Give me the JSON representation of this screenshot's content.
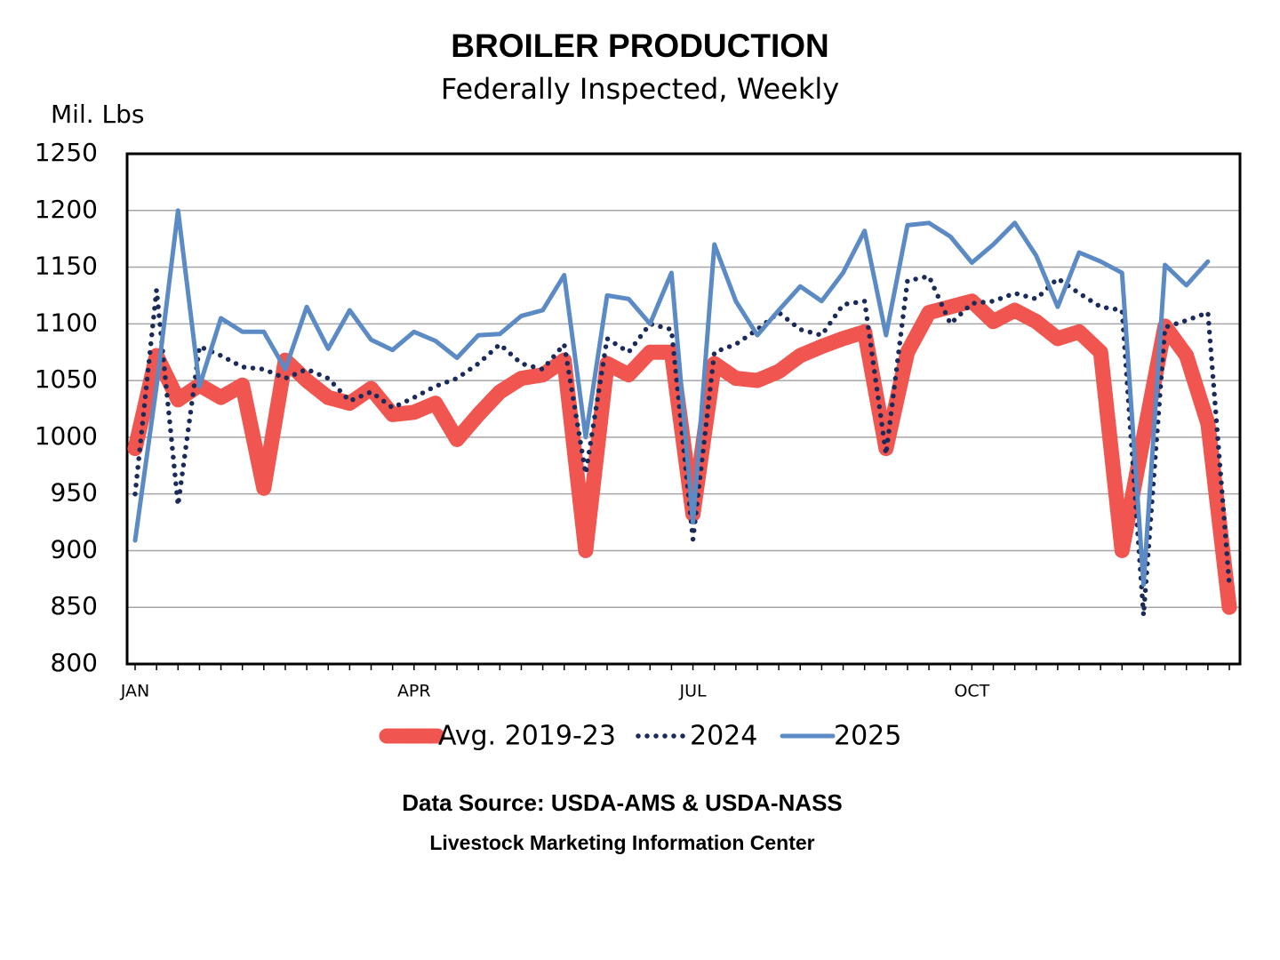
{
  "chart_data": {
    "type": "line",
    "title": "BROILER PRODUCTION",
    "subtitle": "Federally Inspected, Weekly",
    "y_label": "Mil. Lbs",
    "source": "Data Source:  USDA-AMS & USDA-NASS",
    "credit": "Livestock Marketing Information Center",
    "categories": [
      "JAN",
      null,
      null,
      null,
      null,
      null,
      null,
      null,
      null,
      null,
      null,
      null,
      null,
      "APR",
      null,
      null,
      null,
      null,
      null,
      null,
      null,
      null,
      null,
      null,
      null,
      null,
      "JUL",
      null,
      null,
      null,
      null,
      null,
      null,
      null,
      null,
      null,
      null,
      null,
      null,
      "OCT",
      null,
      null,
      null,
      null,
      null,
      null,
      null,
      null,
      null,
      null,
      null,
      null
    ],
    "ylim": [
      800,
      1250
    ],
    "yticks": [
      800,
      850,
      900,
      950,
      1000,
      1050,
      1100,
      1150,
      1200,
      1250
    ],
    "grid": true,
    "legend": "bottom",
    "series": [
      {
        "name": "Avg. 2019-23",
        "color": "#f0554f",
        "style": "thick",
        "values": [
          990,
          1072,
          1033,
          1046,
          1035,
          1046,
          955,
          1068,
          1050,
          1035,
          1030,
          1043,
          1020,
          1022,
          1030,
          998,
          1020,
          1040,
          1052,
          1055,
          1068,
          900,
          1065,
          1055,
          1075,
          1075,
          932,
          1065,
          1052,
          1050,
          1058,
          1072,
          1080,
          1087,
          1093,
          990,
          1075,
          1110,
          1115,
          1120,
          1102,
          1112,
          1102,
          1087,
          1093,
          1075,
          900,
          1000,
          1098,
          1072,
          1012,
          850
        ]
      },
      {
        "name": "2024",
        "color": "#1a2b5a",
        "style": "dotted",
        "values": [
          950,
          1130,
          940,
          1080,
          1072,
          1062,
          1060,
          1052,
          1060,
          1052,
          1032,
          1040,
          1026,
          1035,
          1045,
          1052,
          1065,
          1082,
          1065,
          1060,
          1082,
          968,
          1087,
          1075,
          1100,
          1095,
          910,
          1075,
          1082,
          1095,
          1110,
          1095,
          1090,
          1117,
          1120,
          985,
          1138,
          1142,
          1100,
          1118,
          1120,
          1127,
          1122,
          1140,
          1127,
          1115,
          1112,
          843,
          1097,
          1103,
          1110,
          870
        ]
      },
      {
        "name": "2025",
        "color": "#5b8ac4",
        "style": "solid",
        "values": [
          909,
          1045,
          1200,
          1045,
          1105,
          1093,
          1093,
          1060,
          1115,
          1078,
          1112,
          1086,
          1077,
          1093,
          1085,
          1070,
          1090,
          1091,
          1107,
          1112,
          1143,
          1000,
          1125,
          1122,
          1100,
          1145,
          925,
          1170,
          1120,
          1090,
          1112,
          1133,
          1120,
          1145,
          1182,
          1090,
          1187,
          1189,
          1177,
          1154,
          1170,
          1189,
          1160,
          1115,
          1163,
          1155,
          1145,
          870,
          1152,
          1134,
          1155,
          null
        ]
      }
    ]
  }
}
